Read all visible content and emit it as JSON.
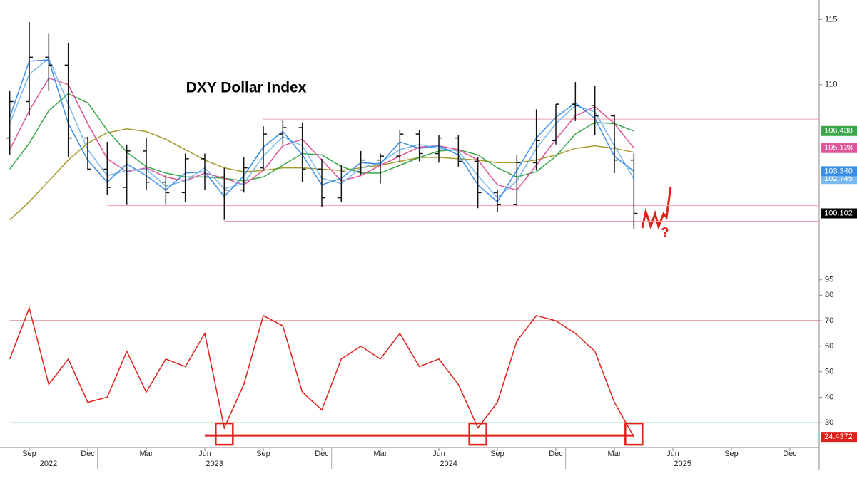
{
  "chart_data": [
    {
      "type": "ohlc",
      "title": "DXY Dollar Index",
      "annotation": "?",
      "x": [
        "2022-08",
        "2022-09",
        "2022-10",
        "2022-11",
        "2022-12",
        "2023-01",
        "2023-02",
        "2023-03",
        "2023-04",
        "2023-05",
        "2023-06",
        "2023-07",
        "2023-08",
        "2023-09",
        "2023-10",
        "2023-11",
        "2023-12",
        "2024-01",
        "2024-02",
        "2024-03",
        "2024-04",
        "2024-05",
        "2024-06",
        "2024-07",
        "2024-08",
        "2024-09",
        "2024-10",
        "2024-11",
        "2024-12",
        "2025-01",
        "2025-02",
        "2025-03",
        "2025-04"
      ],
      "open": [
        105.9,
        108.7,
        112.1,
        111.5,
        105.9,
        103.5,
        102.1,
        104.9,
        102.5,
        101.7,
        104.3,
        102.9,
        101.9,
        103.6,
        106.2,
        106.7,
        103.5,
        101.3,
        103.3,
        104.2,
        104.5,
        106.2,
        104.7,
        105.9,
        104.1,
        101.7,
        100.8,
        104.0,
        105.7,
        108.5,
        108.4,
        107.6,
        104.2
      ],
      "high": [
        109.5,
        114.8,
        113.9,
        113.2,
        106.0,
        105.6,
        105.4,
        105.9,
        103.1,
        104.7,
        104.7,
        103.6,
        104.4,
        106.8,
        107.3,
        107.1,
        104.3,
        103.8,
        104.9,
        104.7,
        106.5,
        106.5,
        106.1,
        106.1,
        104.4,
        101.9,
        104.6,
        108.1,
        108.5,
        110.2,
        109.9,
        107.7,
        104.7
      ],
      "low": [
        104.6,
        107.6,
        109.5,
        104.4,
        103.4,
        101.5,
        100.8,
        101.9,
        100.8,
        101.0,
        101.9,
        99.6,
        101.7,
        103.4,
        105.4,
        102.5,
        100.6,
        101.0,
        103.1,
        102.4,
        104.0,
        104.1,
        104.0,
        103.7,
        100.5,
        100.2,
        100.7,
        103.4,
        105.4,
        107.2,
        106.1,
        103.2,
        98.9
      ],
      "close": [
        108.7,
        112.1,
        111.5,
        105.9,
        103.5,
        102.1,
        104.9,
        102.5,
        101.7,
        104.3,
        102.9,
        101.9,
        103.6,
        106.2,
        106.7,
        103.5,
        101.3,
        103.3,
        104.2,
        104.5,
        106.2,
        104.7,
        105.9,
        104.1,
        101.7,
        100.8,
        104.0,
        105.7,
        108.5,
        108.4,
        107.6,
        104.2,
        100.102
      ],
      "color": "#111111",
      "last_close_label": true,
      "series": [
        {
          "color": "#a89a2a",
          "values": [
            99.6,
            101.0,
            102.6,
            104.2,
            105.5,
            106.3,
            106.6,
            106.4,
            105.8,
            105.0,
            104.2,
            103.6,
            103.3,
            103.4,
            103.6,
            103.6,
            103.5,
            103.4,
            103.6,
            103.8,
            104.1,
            104.4,
            104.4,
            104.3,
            104.2,
            104.0,
            104.0,
            104.2,
            104.6,
            105.1,
            105.3,
            105.1,
            104.8
          ]
        },
        {
          "color": "#3aa84a",
          "values": [
            103.5,
            105.5,
            108.0,
            109.3,
            108.6,
            106.5,
            104.8,
            103.7,
            103.2,
            102.9,
            102.9,
            102.8,
            102.6,
            102.9,
            103.8,
            104.7,
            104.6,
            103.7,
            103.2,
            103.2,
            103.8,
            104.4,
            104.9,
            105.0,
            104.6,
            103.6,
            102.9,
            103.3,
            104.5,
            106.2,
            107.1,
            107.0,
            106.438
          ],
          "value_labels": [
            null,
            null,
            null,
            null,
            null,
            null,
            null,
            null,
            null,
            null,
            null,
            null,
            null,
            null,
            null,
            null,
            null,
            null,
            null,
            null,
            null,
            null,
            null,
            null,
            null,
            null,
            null,
            null,
            null,
            null,
            null,
            null,
            "106.438"
          ]
        },
        {
          "color": "#e0559a",
          "values": [
            105.0,
            108.0,
            110.5,
            110.0,
            107.0,
            104.3,
            103.3,
            103.6,
            102.9,
            102.6,
            103.2,
            102.8,
            102.3,
            103.4,
            105.3,
            105.8,
            104.2,
            102.6,
            103.0,
            103.8,
            104.5,
            105.2,
            105.3,
            105.0,
            104.2,
            102.3,
            101.9,
            103.8,
            105.8,
            107.6,
            108.3,
            107.0,
            105.128
          ],
          "value_labels": [
            null,
            null,
            null,
            null,
            null,
            null,
            null,
            null,
            null,
            null,
            null,
            null,
            null,
            null,
            null,
            null,
            null,
            null,
            null,
            null,
            null,
            null,
            null,
            null,
            null,
            null,
            null,
            null,
            null,
            null,
            null,
            null,
            "105.128"
          ]
        },
        {
          "color": "#7ab8f0",
          "values": [
            107.0,
            110.8,
            112.0,
            108.5,
            105.0,
            103.0,
            103.4,
            103.5,
            102.2,
            102.6,
            103.6,
            102.0,
            102.4,
            104.5,
            106.0,
            105.3,
            102.8,
            102.4,
            103.6,
            104.0,
            105.0,
            105.4,
            105.1,
            104.9,
            103.0,
            101.3,
            102.6,
            105.1,
            107.0,
            108.4,
            107.9,
            105.3,
            102.745
          ],
          "value_labels": [
            null,
            null,
            null,
            null,
            null,
            null,
            null,
            null,
            null,
            null,
            null,
            null,
            null,
            null,
            null,
            null,
            null,
            null,
            null,
            null,
            null,
            null,
            null,
            null,
            null,
            null,
            null,
            null,
            null,
            null,
            null,
            null,
            "102.745"
          ]
        },
        {
          "color": "#3a8ee6",
          "values": [
            107.5,
            111.8,
            111.9,
            107.0,
            104.2,
            102.5,
            103.9,
            103.0,
            101.9,
            103.2,
            103.3,
            101.4,
            103.0,
            105.2,
            106.4,
            104.6,
            102.3,
            102.8,
            104.0,
            103.9,
            105.6,
            105.1,
            105.3,
            104.6,
            102.3,
            101.0,
            103.4,
            105.9,
            107.5,
            108.6,
            107.4,
            104.5,
            103.34
          ],
          "value_labels": [
            null,
            null,
            null,
            null,
            null,
            null,
            null,
            null,
            null,
            null,
            null,
            null,
            null,
            null,
            null,
            null,
            null,
            null,
            null,
            null,
            null,
            null,
            null,
            null,
            null,
            null,
            null,
            null,
            null,
            null,
            null,
            null,
            "103.340"
          ]
        }
      ],
      "hlines": [
        {
          "value": 107.35,
          "from": "2023-09",
          "color": "#f0a0b0"
        },
        {
          "value": 100.7,
          "from": "2023-01",
          "color": "#f0a0b0"
        },
        {
          "value": 99.5,
          "from": "2023-07",
          "color": "#f0a0b0"
        }
      ],
      "xlim": [
        "2022-08",
        "2026-01"
      ],
      "ylim": [
        94.6,
        116.5
      ],
      "yticks": [
        95,
        110,
        115
      ]
    },
    {
      "type": "line",
      "x": [
        "2022-08",
        "2022-09",
        "2022-10",
        "2022-11",
        "2022-12",
        "2023-01",
        "2023-02",
        "2023-03",
        "2023-04",
        "2023-05",
        "2023-06",
        "2023-07",
        "2023-08",
        "2023-09",
        "2023-10",
        "2023-11",
        "2023-12",
        "2024-01",
        "2024-02",
        "2024-03",
        "2024-04",
        "2024-05",
        "2024-06",
        "2024-07",
        "2024-08",
        "2024-09",
        "2024-10",
        "2024-11",
        "2024-12",
        "2025-01",
        "2025-02",
        "2025-03",
        "2025-04"
      ],
      "series": [
        {
          "color": "#e0201a",
          "values": [
            55,
            75,
            45,
            55,
            38,
            40,
            58,
            42,
            55,
            52,
            65,
            28,
            45,
            72,
            68,
            42,
            35,
            55,
            60,
            55,
            65,
            52,
            55,
            45,
            28,
            38,
            62,
            72,
            70,
            65,
            58,
            38,
            24.4372
          ],
          "value_labels": [
            null,
            null,
            null,
            null,
            null,
            null,
            null,
            null,
            null,
            null,
            null,
            null,
            null,
            null,
            null,
            null,
            null,
            null,
            null,
            null,
            null,
            null,
            null,
            null,
            null,
            null,
            null,
            null,
            null,
            null,
            null,
            null,
            "24.4372"
          ]
        }
      ],
      "hlines": [
        {
          "value": 70,
          "from": "2022-08",
          "color": "#b22222"
        },
        {
          "value": 30,
          "from": "2022-08",
          "color": "#5cb85c"
        }
      ],
      "support": {
        "value": 25,
        "from": "2023-06",
        "to": "2025-04",
        "color": "#e0201a"
      },
      "highlights": [
        "2023-07",
        "2024-08",
        "2025-04"
      ],
      "xlim": [
        "2022-08",
        "2026-01"
      ],
      "ylim": [
        20,
        84
      ],
      "yticks": [
        30,
        40,
        50,
        60,
        70,
        80
      ],
      "xticks": [
        {
          "value": "2022-09",
          "label": "Sep"
        },
        {
          "value": "2022-12",
          "label": "Dec"
        },
        {
          "value": "2023-03",
          "label": "Mar"
        },
        {
          "value": "2023-06",
          "label": "Jun"
        },
        {
          "value": "2023-09",
          "label": "Sep"
        },
        {
          "value": "2023-12",
          "label": "Dec"
        },
        {
          "value": "2024-03",
          "label": "Mar"
        },
        {
          "value": "2024-06",
          "label": "Jun"
        },
        {
          "value": "2024-09",
          "label": "Sep"
        },
        {
          "value": "2024-12",
          "label": "Dec"
        },
        {
          "value": "2025-03",
          "label": "Mar"
        },
        {
          "value": "2025-06",
          "label": "Jun"
        },
        {
          "value": "2025-09",
          "label": "Sep"
        },
        {
          "value": "2025-12",
          "label": "Dec"
        }
      ],
      "year_ticks": [
        "2022",
        "2023",
        "2024",
        "2025"
      ]
    }
  ]
}
